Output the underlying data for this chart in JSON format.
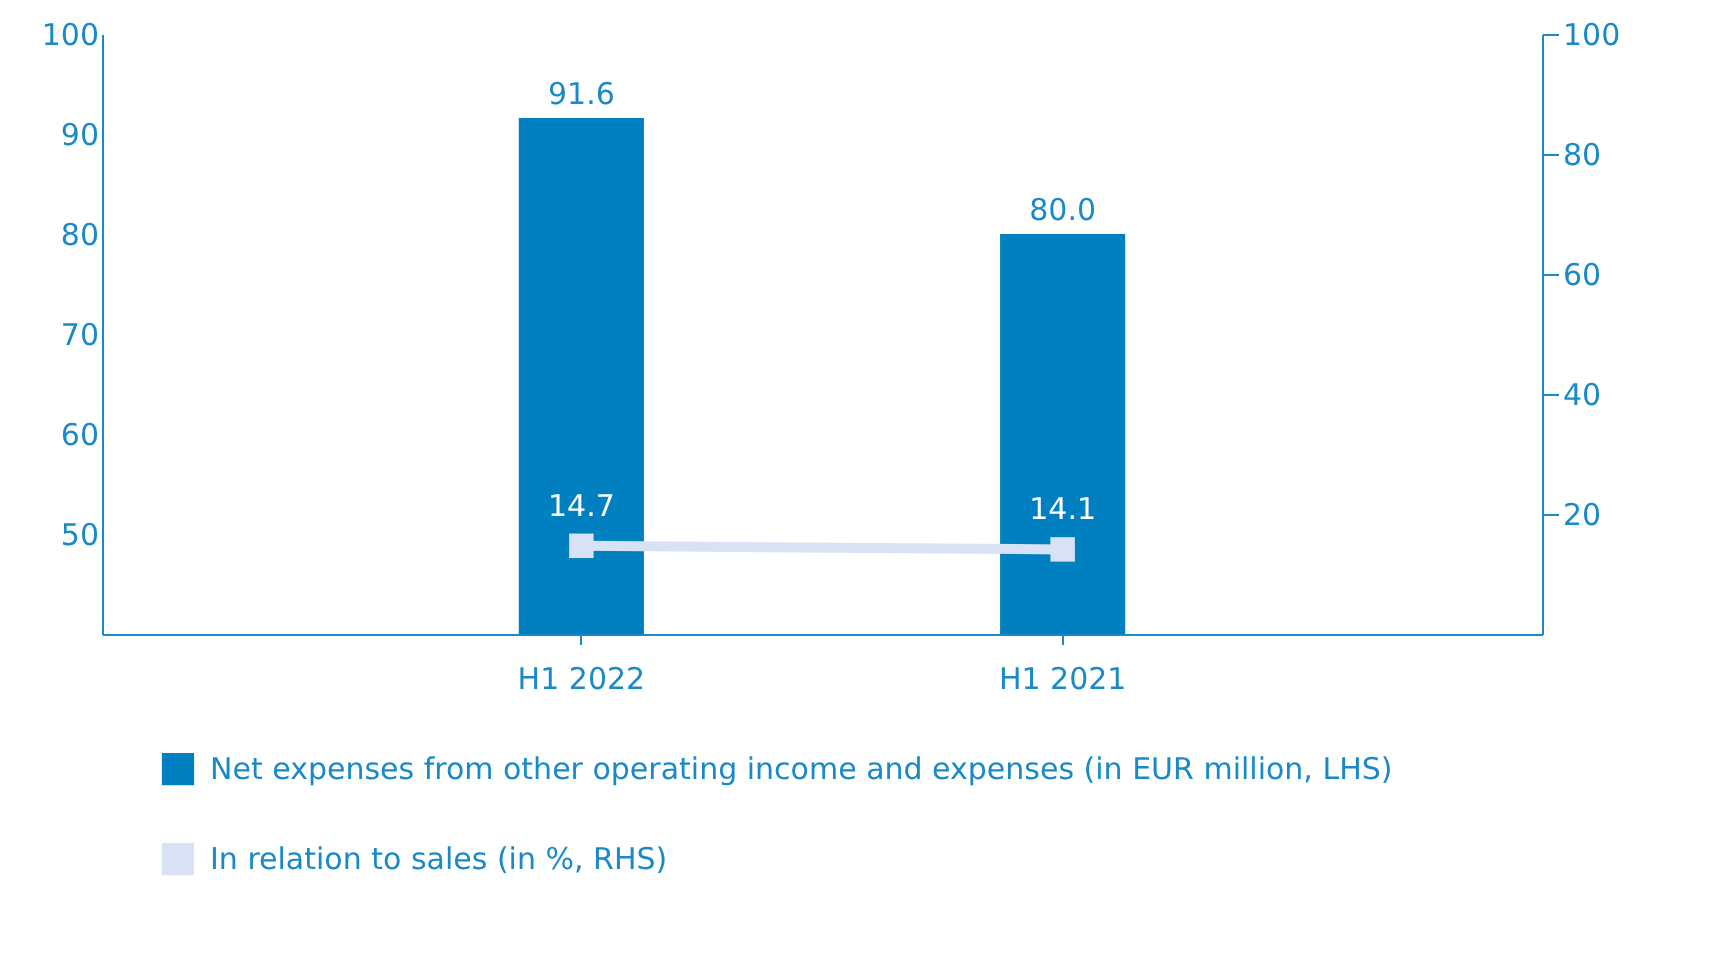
{
  "chart_data": {
    "type": "bar",
    "categories": [
      "H1 2022",
      "H1 2021"
    ],
    "series": [
      {
        "name": "Net expenses from other operating income and expenses (in EUR million, LHS)",
        "color": "#007fc1",
        "values": [
          91.6,
          80.0
        ],
        "value_labels": [
          "91.6",
          "80.0"
        ]
      },
      {
        "name": "In relation to sales (in %, RHS)",
        "color": "#d9e1f4",
        "type": "line",
        "axis": "y2",
        "marker": "square",
        "values": [
          14.7,
          14.1
        ],
        "value_labels": [
          "14.7",
          "14.1"
        ]
      }
    ],
    "ylim": [
      40,
      100
    ],
    "yticks": [
      50,
      60,
      70,
      80,
      90,
      100
    ],
    "y2lim": [
      0,
      100
    ],
    "y2ticks": [
      20,
      40,
      60,
      80,
      100
    ],
    "grid": false,
    "legend": "bottom left"
  }
}
